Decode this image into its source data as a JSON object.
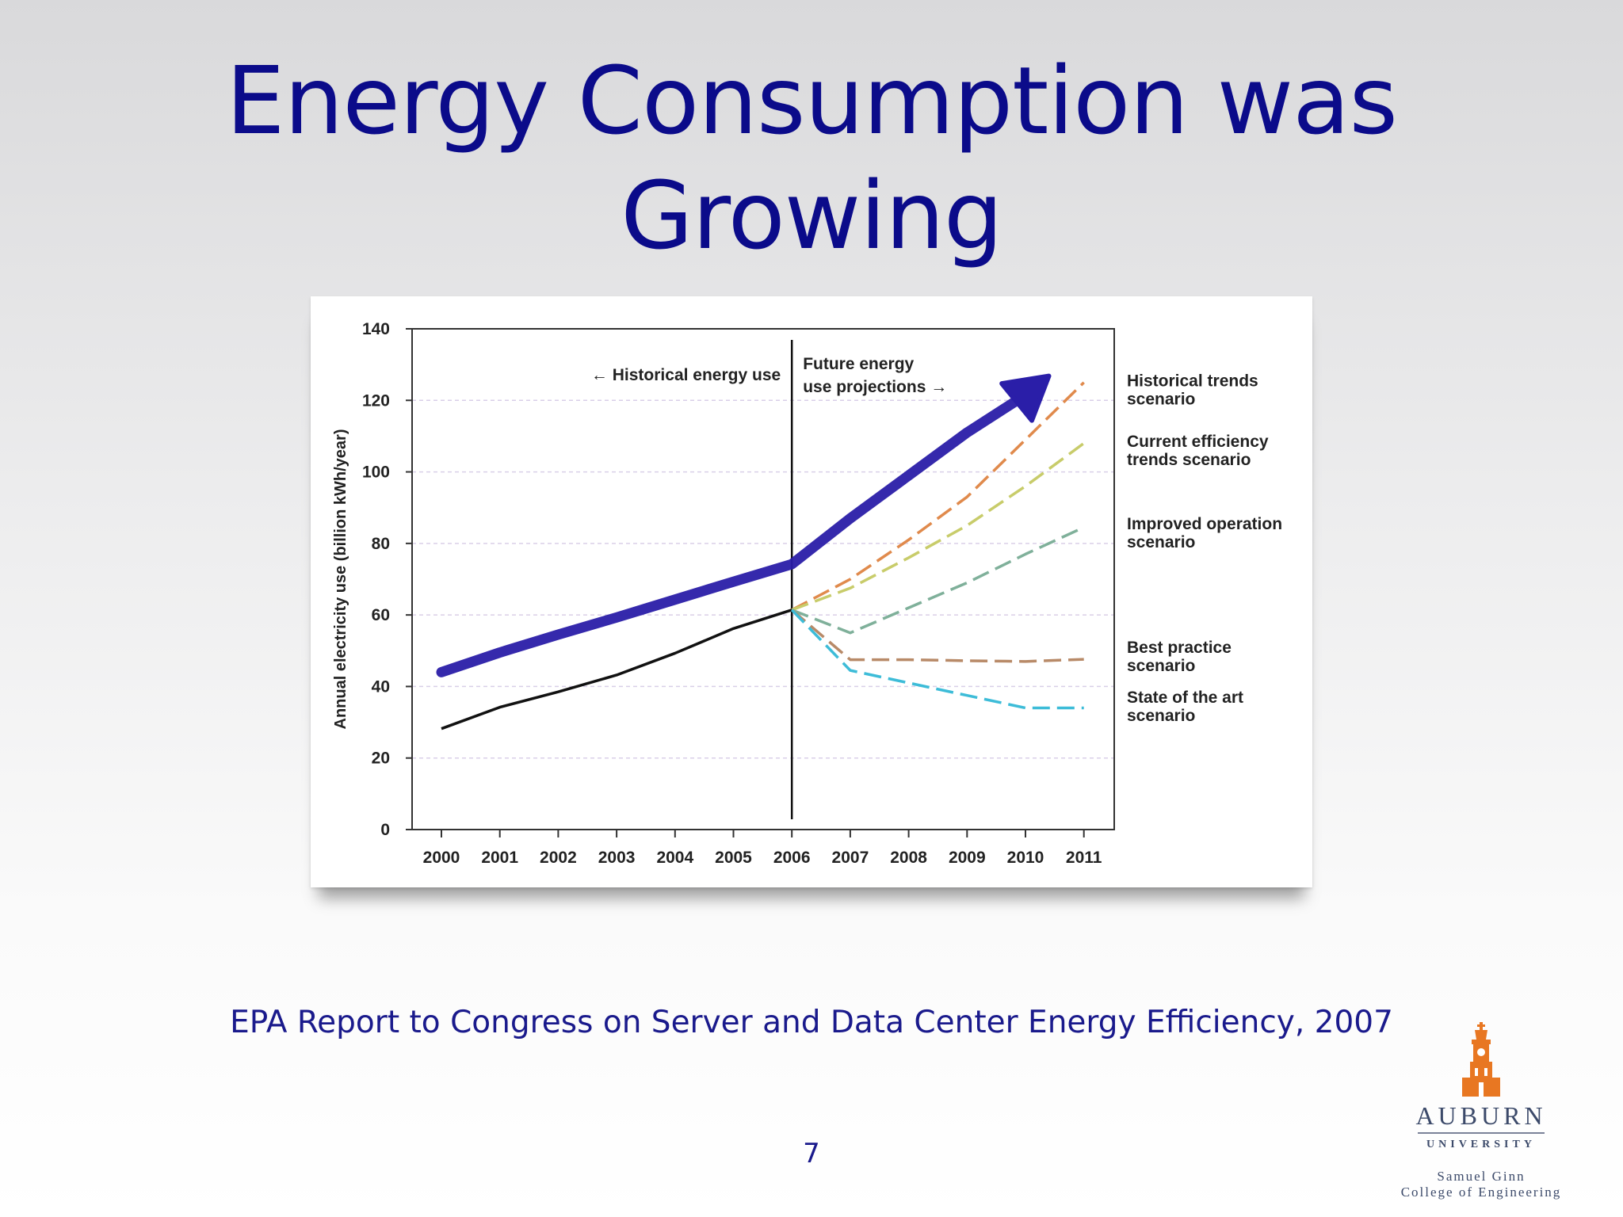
{
  "slide": {
    "title_line1": "Energy Consumption was",
    "title_line2": "Growing",
    "source": "EPA Report to Congress on Server and Data Center Energy Efficiency, 2007",
    "page_number": "7"
  },
  "logo": {
    "name": "AUBURN",
    "sub": "UNIVERSITY",
    "college_line1": "Samuel Ginn",
    "college_line2": "College of Engineering",
    "color": "#e87722"
  },
  "chart_data": {
    "type": "line",
    "ylabel": "Annual electricity use (billion kWh/year)",
    "xlabel": "",
    "ylim": [
      0,
      140
    ],
    "yticks": [
      0,
      20,
      40,
      60,
      80,
      100,
      120,
      140
    ],
    "categories": [
      "2000",
      "2001",
      "2002",
      "2003",
      "2004",
      "2005",
      "2006",
      "2007",
      "2008",
      "2009",
      "2010",
      "2011"
    ],
    "grid": true,
    "divider_year": "2006",
    "annotations": {
      "historical": "← Historical energy use",
      "future_line1": "Future energy",
      "future_line2": "use projections →"
    },
    "series": [
      {
        "name": "Historical energy use",
        "x": [
          "2000",
          "2001",
          "2002",
          "2003",
          "2004",
          "2005",
          "2006"
        ],
        "values": [
          28.2,
          34.2,
          38.5,
          43.2,
          49.3,
          56.2,
          61.4
        ],
        "color": "#111111",
        "dash": false
      },
      {
        "name": "Historical trends scenario",
        "x": [
          "2006",
          "2007",
          "2008",
          "2009",
          "2010",
          "2011"
        ],
        "values": [
          61.4,
          70,
          81,
          93,
          109,
          125
        ],
        "color": "#e08a4c",
        "dash": true
      },
      {
        "name": "Current efficiency trends scenario",
        "x": [
          "2006",
          "2007",
          "2008",
          "2009",
          "2010",
          "2011"
        ],
        "values": [
          61.4,
          67.5,
          76,
          85,
          96,
          108
        ],
        "color": "#c8cc6a",
        "dash": true
      },
      {
        "name": "Improved operation scenario",
        "x": [
          "2006",
          "2007",
          "2008",
          "2009",
          "2010",
          "2011"
        ],
        "values": [
          61.4,
          55,
          62,
          69,
          77,
          84.5
        ],
        "color": "#7fb09a",
        "dash": true
      },
      {
        "name": "Best practice scenario",
        "x": [
          "2006",
          "2007",
          "2008",
          "2009",
          "2010",
          "2011"
        ],
        "values": [
          61.4,
          47.5,
          47.5,
          47.2,
          47.0,
          47.6
        ],
        "color": "#b88a68",
        "dash": true
      },
      {
        "name": "State of the art scenario",
        "x": [
          "2006",
          "2007",
          "2008",
          "2009",
          "2010",
          "2011"
        ],
        "values": [
          61.4,
          44.5,
          41,
          37.5,
          34,
          34
        ],
        "color": "#3dbcd8",
        "dash": true
      }
    ],
    "overlay_arrow": {
      "color": "#2a1ea8",
      "points": [
        [
          "2000",
          44
        ],
        [
          "2001",
          49.5
        ],
        [
          "2002",
          54.5
        ],
        [
          "2003",
          59.3
        ],
        [
          "2004",
          64.3
        ],
        [
          "2005",
          69.3
        ],
        [
          "2006",
          74.2
        ],
        [
          "2007",
          87
        ],
        [
          "2008",
          99
        ],
        [
          "2009",
          111
        ],
        [
          "2010",
          121.5
        ]
      ],
      "head": [
        "2010.4",
        126.8
      ]
    },
    "legend_labels": [
      {
        "line1": "Historical trends",
        "line2": "scenario",
        "anchor_value": 123.5
      },
      {
        "line1": "Current efficiency",
        "line2": "trends scenario",
        "anchor_value": 106.5
      },
      {
        "line1": "Improved operation",
        "line2": "scenario",
        "anchor_value": 83.5
      },
      {
        "line1": "Best practice",
        "line2": "scenario",
        "anchor_value": 49
      },
      {
        "line1": "State of the art",
        "line2": "scenario",
        "anchor_value": 35
      }
    ]
  }
}
